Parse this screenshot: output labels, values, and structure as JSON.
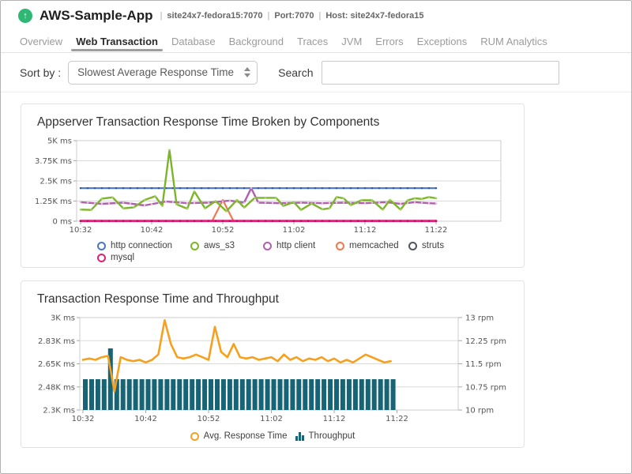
{
  "header": {
    "app_name": "AWS-Sample-App",
    "separator": "|",
    "subtitle_items": [
      "site24x7-fedora15:7070",
      "Port:7070",
      "Host: site24x7-fedora15"
    ],
    "app_icon": "arrow-up-circle-icon",
    "brand_green": "#2eb873"
  },
  "tabs": {
    "items": [
      {
        "label": "Overview",
        "active": false
      },
      {
        "label": "Web Transaction",
        "active": true
      },
      {
        "label": "Database",
        "active": false
      },
      {
        "label": "Background",
        "active": false
      },
      {
        "label": "Traces",
        "active": false
      },
      {
        "label": "JVM",
        "active": false
      },
      {
        "label": "Errors",
        "active": false
      },
      {
        "label": "Exceptions",
        "active": false
      },
      {
        "label": "RUM Analytics",
        "active": false
      }
    ]
  },
  "toolbar": {
    "sort_label": "Sort by :",
    "sort_value": "Slowest Average Response Time",
    "search_label": "Search",
    "search_value": ""
  },
  "chart_data": [
    {
      "type": "line",
      "title": "Appserver Transaction Response Time Broken by Components",
      "x_ticks": [
        {
          "t": 0,
          "label": "10:32"
        },
        {
          "t": 10,
          "label": "10:42"
        },
        {
          "t": 20,
          "label": "10:52"
        },
        {
          "t": 30,
          "label": "11:02"
        },
        {
          "t": 40,
          "label": "11:12"
        },
        {
          "t": 50,
          "label": "11:22"
        }
      ],
      "ylim": [
        0,
        5000
      ],
      "y_unit": "ms",
      "y_ticks": [
        {
          "v": 5000,
          "label": "5K ms"
        },
        {
          "v": 3750,
          "label": "3.75K ms"
        },
        {
          "v": 2500,
          "label": "2.5K ms"
        },
        {
          "v": 1250,
          "label": "1.25K ms"
        },
        {
          "v": 0,
          "label": "0 ms"
        }
      ],
      "series": [
        {
          "name": "http connection",
          "color": "#4a74c4",
          "marker_color": "#2c4f9e",
          "markers": "minute",
          "z": 3,
          "width": 2.2,
          "points": [
            [
              0,
              2050
            ],
            [
              50,
              2050
            ]
          ]
        },
        {
          "name": "aws_s3",
          "color": "#7cb52b",
          "marker_color": "#a5d063",
          "markers": "points",
          "z": 5,
          "width": 2.4,
          "points": [
            [
              0,
              720
            ],
            [
              1.5,
              700
            ],
            [
              3,
              1400
            ],
            [
              4.5,
              1480
            ],
            [
              6,
              800
            ],
            [
              7.5,
              860
            ],
            [
              9,
              1320
            ],
            [
              10.5,
              1550
            ],
            [
              11.5,
              950
            ],
            [
              12.5,
              4420
            ],
            [
              13.5,
              1050
            ],
            [
              15,
              780
            ],
            [
              16,
              1850
            ],
            [
              17.5,
              800
            ],
            [
              19,
              1250
            ],
            [
              20.5,
              620
            ],
            [
              22,
              1320
            ],
            [
              23,
              850
            ],
            [
              24.5,
              1450
            ],
            [
              26,
              1450
            ],
            [
              27.5,
              1450
            ],
            [
              28.5,
              950
            ],
            [
              30,
              1180
            ],
            [
              31,
              700
            ],
            [
              32.5,
              1100
            ],
            [
              34,
              740
            ],
            [
              35,
              800
            ],
            [
              36,
              1500
            ],
            [
              37,
              1420
            ],
            [
              38,
              1000
            ],
            [
              39.5,
              1300
            ],
            [
              41,
              1300
            ],
            [
              42.5,
              720
            ],
            [
              43.5,
              1320
            ],
            [
              45,
              720
            ],
            [
              46,
              1300
            ],
            [
              47,
              1420
            ],
            [
              48,
              1380
            ],
            [
              49,
              1500
            ],
            [
              50,
              1420
            ]
          ]
        },
        {
          "name": "http client",
          "color": "#b05fad",
          "marker_color": "#e4c0e2",
          "markers": "minute",
          "z": 4,
          "width": 2.4,
          "points": [
            [
              0,
              1180
            ],
            [
              3,
              1080
            ],
            [
              6,
              1150
            ],
            [
              9,
              980
            ],
            [
              12,
              1220
            ],
            [
              15,
              1120
            ],
            [
              18,
              1150
            ],
            [
              21,
              1280
            ],
            [
              23,
              1150
            ],
            [
              24,
              2050
            ],
            [
              25,
              1150
            ],
            [
              28,
              1120
            ],
            [
              31,
              1150
            ],
            [
              34,
              1120
            ],
            [
              37,
              1150
            ],
            [
              40,
              1120
            ],
            [
              43,
              1180
            ],
            [
              45,
              1080
            ],
            [
              47,
              1180
            ],
            [
              49,
              1120
            ],
            [
              50,
              1100
            ]
          ]
        },
        {
          "name": "memcached",
          "color": "#f4774d",
          "marker_color": "#d55c33",
          "markers": "none",
          "z": 2,
          "width": 2.2,
          "points": [
            [
              0,
              15
            ],
            [
              18.5,
              15
            ],
            [
              20,
              1320
            ],
            [
              21.5,
              15
            ],
            [
              50,
              15
            ]
          ]
        },
        {
          "name": "struts",
          "color": "#50545e",
          "marker_color": "#50545e",
          "markers": "none",
          "z": 1,
          "width": 2,
          "points": [
            [
              0,
              10
            ],
            [
              50,
              10
            ]
          ]
        },
        {
          "name": "mysql",
          "color": "#df1e74",
          "marker_color": "#a81356",
          "markers": "minute",
          "z": 6,
          "width": 2.8,
          "points": [
            [
              0,
              15
            ],
            [
              50,
              15
            ]
          ]
        }
      ]
    },
    {
      "type": "combo",
      "title": "Transaction Response Time and Throughput",
      "x_ticks": [
        {
          "t": 0,
          "label": "10:32"
        },
        {
          "t": 10,
          "label": "10:42"
        },
        {
          "t": 20,
          "label": "10:52"
        },
        {
          "t": 30,
          "label": "11:02"
        },
        {
          "t": 40,
          "label": "11:12"
        },
        {
          "t": 50,
          "label": "11:22"
        }
      ],
      "y_left": {
        "lim": [
          2300,
          3000
        ],
        "unit": "ms",
        "ticks": [
          {
            "v": 3000,
            "label": "3K ms"
          },
          {
            "v": 2825,
            "label": "2.83K ms"
          },
          {
            "v": 2650,
            "label": "2.65K ms"
          },
          {
            "v": 2475,
            "label": "2.48K ms"
          },
          {
            "v": 2300,
            "label": "2.3K ms"
          }
        ]
      },
      "y_right": {
        "lim": [
          10,
          13
        ],
        "unit": "rpm",
        "ticks": [
          {
            "v": 13,
            "label": "13 rpm"
          },
          {
            "v": 12.25,
            "label": "12.25 rpm"
          },
          {
            "v": 11.5,
            "label": "11.5 rpm"
          },
          {
            "v": 10.75,
            "label": "10.75 rpm"
          },
          {
            "v": 10,
            "label": "10 rpm"
          }
        ]
      },
      "line": {
        "name": "Avg. Response Time",
        "color": "#f6a01e",
        "width": 2.6,
        "points": [
          [
            0,
            2680
          ],
          [
            1,
            2690
          ],
          [
            2,
            2680
          ],
          [
            3,
            2700
          ],
          [
            4,
            2710
          ],
          [
            5,
            2440
          ],
          [
            6,
            2700
          ],
          [
            7,
            2680
          ],
          [
            8,
            2670
          ],
          [
            9,
            2680
          ],
          [
            10,
            2660
          ],
          [
            11,
            2680
          ],
          [
            12,
            2720
          ],
          [
            13,
            2980
          ],
          [
            14,
            2800
          ],
          [
            15,
            2700
          ],
          [
            16,
            2690
          ],
          [
            17,
            2700
          ],
          [
            18,
            2720
          ],
          [
            19,
            2700
          ],
          [
            20,
            2680
          ],
          [
            21,
            2930
          ],
          [
            22,
            2740
          ],
          [
            23,
            2700
          ],
          [
            24,
            2800
          ],
          [
            25,
            2700
          ],
          [
            26,
            2690
          ],
          [
            27,
            2700
          ],
          [
            28,
            2680
          ],
          [
            29,
            2690
          ],
          [
            30,
            2700
          ],
          [
            31,
            2670
          ],
          [
            32,
            2720
          ],
          [
            33,
            2680
          ],
          [
            34,
            2700
          ],
          [
            35,
            2670
          ],
          [
            36,
            2690
          ],
          [
            37,
            2680
          ],
          [
            38,
            2700
          ],
          [
            39,
            2670
          ],
          [
            40,
            2690
          ],
          [
            41,
            2660
          ],
          [
            42,
            2680
          ],
          [
            43,
            2660
          ],
          [
            44,
            2690
          ],
          [
            45,
            2720
          ],
          [
            46,
            2700
          ],
          [
            47,
            2680
          ],
          [
            48,
            2660
          ],
          [
            49,
            2670
          ]
        ]
      },
      "bars": {
        "name": "Throughput",
        "color": "#166476",
        "values": [
          11,
          11,
          11,
          11,
          12,
          11,
          11,
          11,
          11,
          11,
          11,
          11,
          11,
          11,
          11,
          11,
          11,
          11,
          11,
          11,
          11,
          11,
          11,
          11,
          11,
          11,
          11,
          11,
          11,
          11,
          11,
          11,
          11,
          11,
          11,
          11,
          11,
          11,
          11,
          11,
          11,
          11,
          11,
          11,
          11,
          11,
          11,
          11,
          11,
          11
        ]
      }
    }
  ]
}
